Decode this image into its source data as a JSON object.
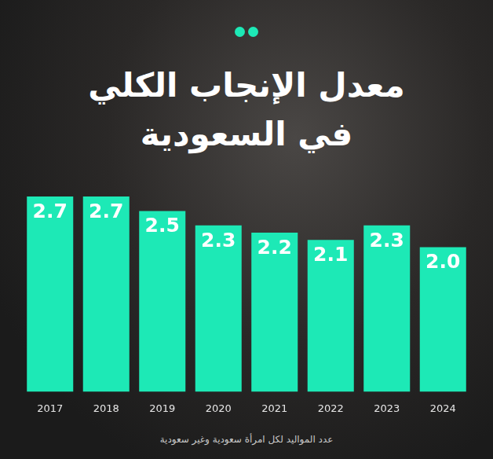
{
  "chart_data": {
    "type": "bar",
    "title": "معدل الإنجاب الكلي في السعودية",
    "subtitle": "عدد المواليد لكل امرأة سعودية وغير سعودية",
    "categories": [
      "2017",
      "2018",
      "2019",
      "2020",
      "2021",
      "2022",
      "2023",
      "2024"
    ],
    "values": [
      2.7,
      2.7,
      2.5,
      2.3,
      2.2,
      2.1,
      2.3,
      2.0
    ],
    "value_labels": [
      "2.7",
      "2.7",
      "2.5",
      "2.3",
      "2.2",
      "2.1",
      "2.3",
      "2.0"
    ],
    "color": "#1de9b6",
    "ylim": [
      0,
      2.7
    ],
    "grid": false,
    "data_labels": true,
    "tick_labels": "x"
  }
}
